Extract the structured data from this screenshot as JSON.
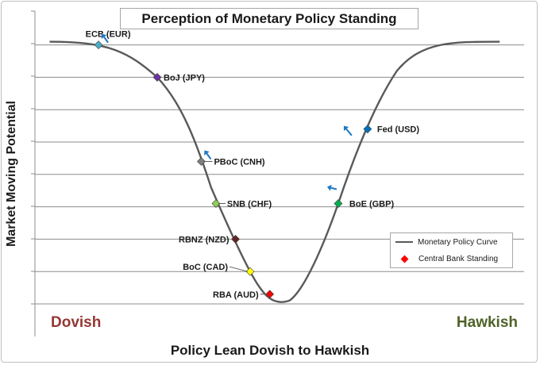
{
  "chart_data": {
    "type": "line",
    "title": "Perception of Monetary Policy Standing",
    "xlabel": "Policy Lean Dovish to Hawkish",
    "ylabel": "Market Moving Potential",
    "left_annotation": "Dovish",
    "right_annotation": "Hawkish",
    "grid": true,
    "legend_position": "bottom-right",
    "series": [
      {
        "name": "Monetary Policy Curve",
        "color": "#595959",
        "style": "line"
      },
      {
        "name": "Central Bank Standing",
        "color": "#ff0000",
        "style": "marker"
      }
    ],
    "points": [
      {
        "label": "ECB (EUR)",
        "x": 0.13,
        "y": 8.0,
        "color": "#4bacc6",
        "arrow": "up-left"
      },
      {
        "label": "BoJ (JPY)",
        "x": 0.25,
        "y": 7.0,
        "color": "#7030a0",
        "arrow": ""
      },
      {
        "label": "PBoC (CNH)",
        "x": 0.34,
        "y": 4.4,
        "color": "#7f7f7f",
        "arrow": "up-left"
      },
      {
        "label": "SNB (CHF)",
        "x": 0.37,
        "y": 3.1,
        "color": "#92d050",
        "arrow": ""
      },
      {
        "label": "RBNZ (NZD)",
        "x": 0.41,
        "y": 2.0,
        "color": "#632523",
        "arrow": ""
      },
      {
        "label": "BoC (CAD)",
        "x": 0.44,
        "y": 1.0,
        "color": "#ffff00",
        "arrow": ""
      },
      {
        "label": "RBA (AUD)",
        "x": 0.48,
        "y": 0.3,
        "color": "#ff0000",
        "arrow": ""
      },
      {
        "label": "BoE (GBP)",
        "x": 0.62,
        "y": 3.1,
        "color": "#00b050",
        "arrow": "down-left"
      },
      {
        "label": "Fed (USD)",
        "x": 0.68,
        "y": 5.4,
        "color": "#0070c0",
        "arrow": "up-right"
      }
    ]
  }
}
